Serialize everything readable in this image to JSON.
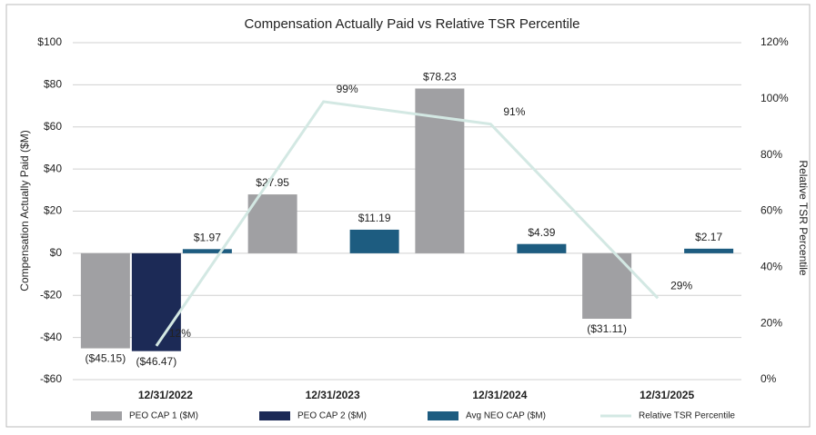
{
  "chart_data": {
    "type": "bar+line",
    "title": "Compensation Actually Paid vs Relative TSR Percentile",
    "y_label": "Compensation Actually Paid ($M)",
    "y2_label": "Relative TSR Percentile",
    "categories": [
      "12/31/2022",
      "12/31/2023",
      "12/31/2024",
      "12/31/2025"
    ],
    "series": [
      {
        "name": "PEO CAP 1 ($M)",
        "type": "bar",
        "color": "#a0a0a3",
        "values": [
          -45.15,
          27.95,
          78.23,
          -31.11
        ],
        "value_labels": [
          "($45.15)",
          "$27.95",
          "$78.23",
          "($31.11)"
        ]
      },
      {
        "name": "PEO CAP 2 ($M)",
        "type": "bar",
        "color": "#1c2a56",
        "values": [
          -46.47,
          null,
          null,
          null
        ],
        "value_labels": [
          "($46.47)",
          null,
          null,
          null
        ]
      },
      {
        "name": "Avg NEO CAP ($M)",
        "type": "bar",
        "color": "#1d5c80",
        "values": [
          1.97,
          11.19,
          4.39,
          2.17
        ],
        "value_labels": [
          "$1.97",
          "$11.19",
          "$4.39",
          "$2.17"
        ]
      },
      {
        "name": "Relative TSR Percentile",
        "type": "line",
        "axis": "y2",
        "color": "#d3e8e3",
        "values": [
          12,
          99,
          91,
          29
        ],
        "value_labels": [
          "12%",
          "99%",
          "91%",
          "29%"
        ]
      }
    ],
    "ylim": [
      -60,
      100
    ],
    "yticks": [
      {
        "value": -60,
        "label": "-$60"
      },
      {
        "value": -40,
        "label": "-$40"
      },
      {
        "value": -20,
        "label": "-$20"
      },
      {
        "value": 0,
        "label": "$0"
      },
      {
        "value": 20,
        "label": "$20"
      },
      {
        "value": 40,
        "label": "$40"
      },
      {
        "value": 60,
        "label": "$60"
      },
      {
        "value": 80,
        "label": "$80"
      },
      {
        "value": 100,
        "label": "$100"
      }
    ],
    "y2lim": [
      0,
      120
    ],
    "y2ticks": [
      {
        "value": 0,
        "label": "0%"
      },
      {
        "value": 20,
        "label": "20%"
      },
      {
        "value": 40,
        "label": "40%"
      },
      {
        "value": 60,
        "label": "60%"
      },
      {
        "value": 80,
        "label": "80%"
      },
      {
        "value": 100,
        "label": "100%"
      },
      {
        "value": 120,
        "label": "120%"
      }
    ],
    "grid": true,
    "legend": "bottom"
  }
}
